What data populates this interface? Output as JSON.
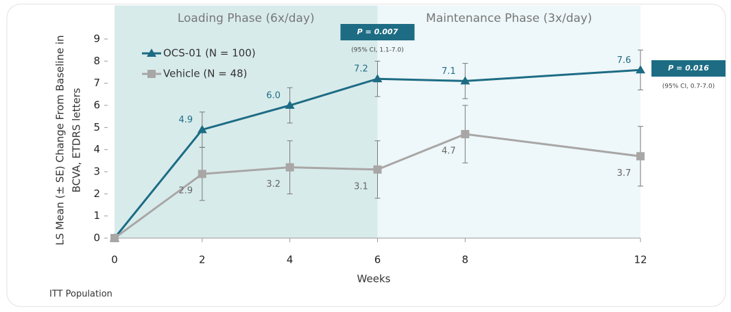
{
  "chart_data": {
    "type": "line",
    "x": [
      0,
      2,
      4,
      6,
      8,
      12
    ],
    "xlim": [
      0,
      12
    ],
    "xticks": [
      0,
      2,
      4,
      6,
      8,
      12
    ],
    "ylim": [
      0,
      9
    ],
    "yticks": [
      0,
      1,
      2,
      3,
      4,
      5,
      6,
      7,
      8,
      9
    ],
    "xlabel": "Weeks",
    "ylabel_lines": [
      "LS Mean (± SE) Change From Baseline in",
      "BCVA, ETDRS letters"
    ],
    "phases": [
      {
        "label": "Loading Phase (6x/day)",
        "start": 0,
        "end": 6,
        "color": "#d8ebeb"
      },
      {
        "label": "Maintenance Phase (3x/day)",
        "start": 6,
        "end": 12,
        "color": "#eef7f9"
      }
    ],
    "series": [
      {
        "name": "OCS-01 (N = 100)",
        "color": "#1d6c84",
        "marker": "triangle",
        "label_side": "above",
        "values": [
          0,
          4.9,
          6.0,
          7.2,
          7.1,
          7.6
        ],
        "value_labels": [
          null,
          "4.9",
          "6.0",
          "7.2",
          "7.1",
          "7.6"
        ],
        "errors": [
          0,
          0.8,
          0.8,
          0.8,
          0.8,
          0.9
        ]
      },
      {
        "name": "Vehicle (N = 48)",
        "color": "#a9a6a6",
        "marker": "square",
        "label_side": "below",
        "values": [
          0,
          2.9,
          3.2,
          3.1,
          4.7,
          3.7
        ],
        "value_labels": [
          null,
          "2.9",
          "3.2",
          "3.1",
          "4.7",
          "3.7"
        ],
        "errors": [
          0,
          1.2,
          1.2,
          1.3,
          1.3,
          1.35
        ]
      }
    ],
    "annotations": [
      {
        "text": "P = 0.007",
        "note": "(95% CI, 1.1-7.0)",
        "x": 6,
        "position": "above",
        "color": "#1d6c84"
      },
      {
        "text": "P = 0.016",
        "note": "(95% CI, 0.7-7.0)",
        "x": 12,
        "position": "right",
        "color": "#1d6c84"
      }
    ],
    "footnote": "ITT Population"
  }
}
